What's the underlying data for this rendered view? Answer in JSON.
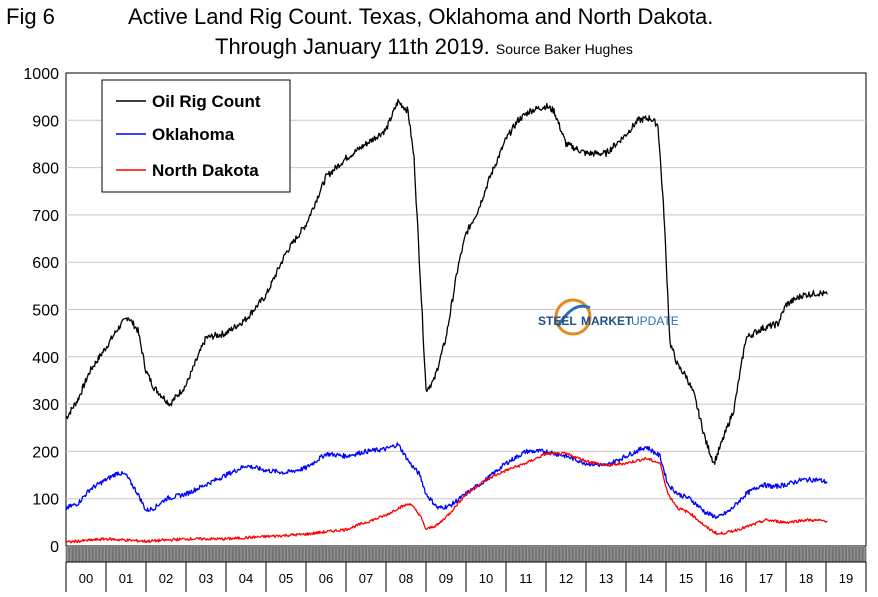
{
  "figure_label": "Fig 6",
  "chart_data": {
    "type": "line",
    "title_line1": "Active Land Rig Count. Texas, Oklahoma and North Dakota.",
    "title_line2": "Through January 11th 2019.",
    "source": "Source Baker Hughes",
    "xlabel": "",
    "ylabel": "",
    "ylim": [
      0,
      1000
    ],
    "y_ticks": [
      "0",
      "100",
      "200",
      "300",
      "400",
      "500",
      "600",
      "700",
      "800",
      "900",
      "1000"
    ],
    "x_range": [
      2000.0,
      2020.0
    ],
    "x_categories": [
      "00",
      "01",
      "02",
      "03",
      "04",
      "05",
      "06",
      "07",
      "08",
      "09",
      "10",
      "11",
      "12",
      "13",
      "14",
      "15",
      "16",
      "17",
      "18",
      "19"
    ],
    "grid": true,
    "legend_position": "top-left",
    "series": [
      {
        "name": "Oil Rig Count",
        "color": "#000000",
        "x": [
          2000.0,
          2000.3,
          2000.6,
          2001.0,
          2001.3,
          2001.55,
          2001.8,
          2002.0,
          2002.2,
          2002.6,
          2003.0,
          2003.5,
          2004.0,
          2004.5,
          2005.0,
          2005.5,
          2006.0,
          2006.5,
          2007.0,
          2007.5,
          2008.0,
          2008.3,
          2008.55,
          2008.7,
          2008.85,
          2009.0,
          2009.2,
          2009.5,
          2009.8,
          2010.0,
          2010.3,
          2010.6,
          2011.0,
          2011.3,
          2011.6,
          2012.0,
          2012.2,
          2012.5,
          2013.0,
          2013.5,
          2014.0,
          2014.3,
          2014.6,
          2014.8,
          2014.95,
          2015.1,
          2015.3,
          2015.5,
          2015.7,
          2016.0,
          2016.2,
          2016.4,
          2016.7,
          2017.0,
          2017.4,
          2017.8,
          2018.0,
          2018.4,
          2018.8,
          2019.03
        ],
        "values": [
          270,
          310,
          370,
          420,
          460,
          485,
          455,
          370,
          335,
          300,
          340,
          440,
          450,
          480,
          530,
          620,
          680,
          780,
          820,
          850,
          880,
          940,
          920,
          820,
          580,
          330,
          350,
          440,
          590,
          660,
          710,
          780,
          860,
          900,
          920,
          930,
          920,
          850,
          830,
          830,
          870,
          900,
          905,
          890,
          700,
          430,
          380,
          360,
          320,
          220,
          175,
          220,
          290,
          440,
          460,
          470,
          510,
          530,
          535,
          532
        ]
      },
      {
        "name": "Oklahoma",
        "color": "#0000ff",
        "x": [
          2000.0,
          2000.3,
          2000.6,
          2001.0,
          2001.3,
          2001.5,
          2001.8,
          2002.0,
          2002.2,
          2002.5,
          2003.0,
          2003.5,
          2004.0,
          2004.5,
          2005.0,
          2005.5,
          2006.0,
          2006.5,
          2007.0,
          2007.5,
          2008.0,
          2008.3,
          2008.6,
          2008.85,
          2009.0,
          2009.3,
          2009.6,
          2010.0,
          2010.5,
          2011.0,
          2011.5,
          2012.0,
          2012.5,
          2013.0,
          2013.5,
          2014.0,
          2014.5,
          2014.85,
          2015.05,
          2015.3,
          2015.6,
          2016.0,
          2016.3,
          2016.6,
          2017.0,
          2017.4,
          2017.7,
          2018.0,
          2018.4,
          2018.8,
          2019.03
        ],
        "values": [
          80,
          90,
          120,
          140,
          155,
          150,
          110,
          75,
          80,
          100,
          110,
          130,
          150,
          170,
          160,
          155,
          165,
          195,
          190,
          200,
          205,
          215,
          175,
          150,
          110,
          80,
          85,
          110,
          140,
          175,
          200,
          200,
          190,
          175,
          170,
          190,
          210,
          190,
          130,
          110,
          100,
          70,
          60,
          75,
          110,
          130,
          125,
          130,
          140,
          140,
          135
        ]
      },
      {
        "name": "North Dakota",
        "color": "#ff0000",
        "x": [
          2000.0,
          2001.0,
          2002.0,
          2003.0,
          2004.0,
          2005.0,
          2006.0,
          2007.0,
          2008.0,
          2008.3,
          2008.6,
          2008.85,
          2009.0,
          2009.3,
          2009.6,
          2010.0,
          2010.5,
          2011.0,
          2011.5,
          2012.0,
          2012.5,
          2013.0,
          2013.5,
          2014.0,
          2014.5,
          2014.85,
          2015.05,
          2015.3,
          2015.6,
          2016.0,
          2016.3,
          2016.6,
          2017.0,
          2017.5,
          2018.0,
          2018.5,
          2019.03
        ],
        "values": [
          8,
          15,
          10,
          15,
          15,
          20,
          25,
          35,
          65,
          80,
          90,
          65,
          35,
          45,
          70,
          110,
          140,
          160,
          175,
          195,
          195,
          180,
          170,
          175,
          185,
          175,
          110,
          80,
          70,
          40,
          25,
          30,
          40,
          55,
          50,
          55,
          53
        ]
      }
    ]
  },
  "watermark": {
    "brand_word1": "STEEL",
    "brand_word2": "MARKET",
    "brand_word3": "UPDATE"
  }
}
